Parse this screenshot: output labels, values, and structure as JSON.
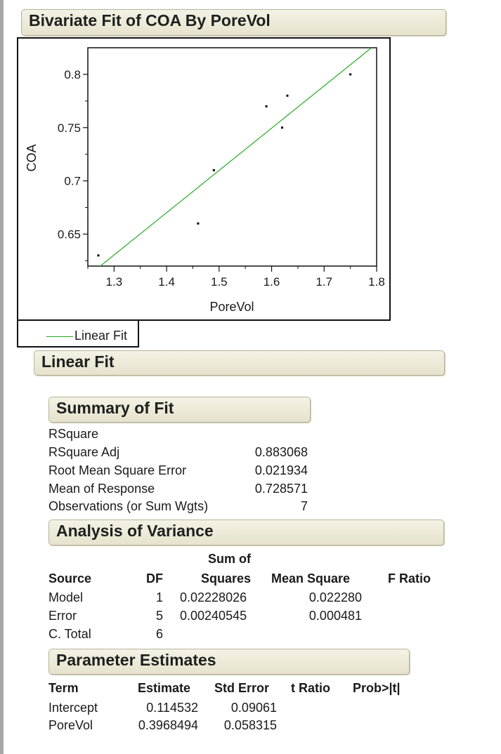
{
  "report": {
    "title": "Bivariate Fit of COA By PoreVol"
  },
  "chart_data": {
    "type": "scatter",
    "xlabel": "PoreVol",
    "ylabel": "COA",
    "xlim": [
      1.25,
      1.8
    ],
    "ylim": [
      0.62,
      0.825
    ],
    "xticks": [
      "1.3",
      "1.4",
      "1.5",
      "1.6",
      "1.7",
      "1.8"
    ],
    "yticks": [
      "0.65",
      "0.7",
      "0.75",
      "0.8"
    ],
    "points": [
      {
        "x": 1.27,
        "y": 0.63
      },
      {
        "x": 1.46,
        "y": 0.66
      },
      {
        "x": 1.49,
        "y": 0.71
      },
      {
        "x": 1.59,
        "y": 0.77
      },
      {
        "x": 1.62,
        "y": 0.75
      },
      {
        "x": 1.63,
        "y": 0.78
      },
      {
        "x": 1.75,
        "y": 0.8
      }
    ],
    "fit_line": {
      "intercept": 0.114532,
      "slope": 0.3968494
    },
    "fit_color": "#22aa22",
    "point_color": "#000000",
    "grid": false,
    "legend": "Linear Fit",
    "legend_position": "bottom-left"
  },
  "linear_fit": {
    "title": "Linear Fit"
  },
  "summary_of_fit": {
    "title": "Summary of Fit",
    "rows": [
      {
        "label": "RSquare",
        "value": ""
      },
      {
        "label": "RSquare Adj",
        "value": "0.883068"
      },
      {
        "label": "Root Mean Square Error",
        "value": "0.021934"
      },
      {
        "label": "Mean of Response",
        "value": "0.728571"
      },
      {
        "label": "Observations (or Sum Wgts)",
        "value": "7"
      }
    ]
  },
  "anova": {
    "title": "Analysis of Variance",
    "headers": {
      "source": "Source",
      "df": "DF",
      "ss_top": "Sum of",
      "ss": "Squares",
      "ms": "Mean Square",
      "f": "F Ratio"
    },
    "rows": [
      {
        "source": "Model",
        "df": "1",
        "ss": "0.02228026",
        "ms": "0.022280"
      },
      {
        "source": "Error",
        "df": "5",
        "ss": "0.00240545",
        "ms": "0.000481"
      },
      {
        "source": "C. Total",
        "df": "6",
        "ss": "",
        "ms": ""
      }
    ]
  },
  "parameter_estimates": {
    "title": "Parameter Estimates",
    "headers": {
      "term": "Term",
      "estimate": "Estimate",
      "stderr": "Std Error",
      "tratio": "t Ratio",
      "prob": "Prob>|t|"
    },
    "rows": [
      {
        "term": "Intercept",
        "estimate": "0.114532",
        "stderr": "0.09061"
      },
      {
        "term": "PoreVol",
        "estimate": "0.3968494",
        "stderr": "0.058315"
      }
    ]
  }
}
